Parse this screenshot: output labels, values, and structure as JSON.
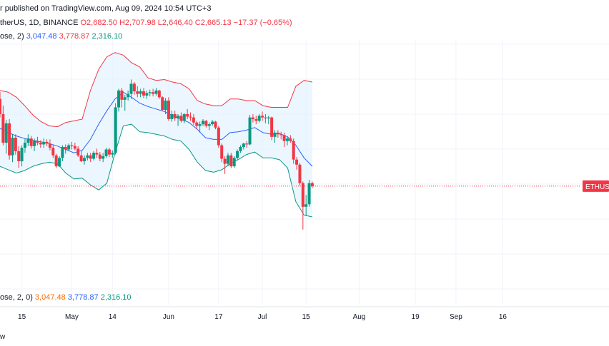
{
  "header": {
    "line1": "r published on TradingView.com, Aug 09, 2024 10:54 UTC+3",
    "symbol": "therUS, 1D, BINANCE",
    "open_label": "O",
    "open": "2,682.50",
    "high_label": "H",
    "high": "2,707.98",
    "low_label": "L",
    "low": "2,646.40",
    "close_label": "C",
    "close": "2,665.13",
    "change": "−17.37 (−0.65%)",
    "bb_label": "ose, 2)",
    "bb_basis": "3,047.48",
    "bb_upper": "3,778.87",
    "bb_lower": "2,316.10"
  },
  "lower_legend": {
    "label": "ose, 2, 0)",
    "v1": "3,047.48",
    "v2": "3,778.87",
    "v3": "2,316.10"
  },
  "price_tag": {
    "label": "ETHUSD"
  },
  "footer": {
    "text": "w"
  },
  "colors": {
    "up": "#089981",
    "down": "#f23645",
    "basis": "#2962ff",
    "upper": "#f23645",
    "lower": "#089981",
    "band_fill": "#e3f2fd",
    "grid": "#f0f3fa",
    "price_line": "#f23645"
  },
  "chart_data": {
    "type": "candlestick",
    "y_range": [
      1250,
      4400
    ],
    "x_start": "2024-04-08",
    "x_end": "2024-10-20",
    "x_ticks": [
      {
        "date": "2024-04-15",
        "label": "15"
      },
      {
        "date": "2024-05-01",
        "label": "May"
      },
      {
        "date": "2024-05-14",
        "label": "14"
      },
      {
        "date": "2024-06-01",
        "label": "Jun"
      },
      {
        "date": "2024-06-17",
        "label": "17"
      },
      {
        "date": "2024-07-01",
        "label": "Jul"
      },
      {
        "date": "2024-07-15",
        "label": "15"
      },
      {
        "date": "2024-08-01",
        "label": "Aug"
      },
      {
        "date": "2024-08-19",
        "label": "19"
      },
      {
        "date": "2024-09-01",
        "label": "Sep"
      },
      {
        "date": "2024-09-16",
        "label": "16"
      }
    ],
    "last_price": 2665.13,
    "candles_start": "2024-04-08",
    "candles": [
      [
        3700,
        3780,
        3480,
        3520
      ],
      [
        3520,
        3620,
        3150,
        3180
      ],
      [
        3180,
        3450,
        3050,
        3410
      ],
      [
        3410,
        3460,
        2980,
        3030
      ],
      [
        3030,
        3280,
        2950,
        3240
      ],
      [
        3240,
        3280,
        3040,
        3080
      ],
      [
        3080,
        3140,
        2880,
        2960
      ],
      [
        2960,
        3150,
        2900,
        3120
      ],
      [
        3120,
        3230,
        3060,
        3180
      ],
      [
        3180,
        3280,
        3140,
        3230
      ],
      [
        3230,
        3260,
        3110,
        3140
      ],
      [
        3140,
        3230,
        3080,
        3200
      ],
      [
        3200,
        3250,
        3150,
        3180
      ],
      [
        3180,
        3210,
        3120,
        3160
      ],
      [
        3160,
        3230,
        3120,
        3190
      ],
      [
        3190,
        3220,
        3140,
        3170
      ],
      [
        3170,
        3220,
        3090,
        3120
      ],
      [
        3120,
        3160,
        3000,
        3030
      ],
      [
        3030,
        3050,
        2880,
        2900
      ],
      [
        2900,
        3020,
        2890,
        3000
      ],
      [
        3000,
        3150,
        2960,
        3130
      ],
      [
        3130,
        3160,
        3050,
        3100
      ],
      [
        3100,
        3170,
        3080,
        3150
      ],
      [
        3150,
        3190,
        3100,
        3140
      ],
      [
        3140,
        3180,
        3090,
        3110
      ],
      [
        3110,
        3140,
        3010,
        3030
      ],
      [
        3030,
        3090,
        2950,
        2960
      ],
      [
        2960,
        3030,
        2920,
        3000
      ],
      [
        3000,
        3060,
        2970,
        3030
      ],
      [
        3030,
        3060,
        2950,
        2990
      ],
      [
        2990,
        3080,
        2970,
        3060
      ],
      [
        3060,
        3110,
        3000,
        3040
      ],
      [
        3040,
        3070,
        2960,
        2990
      ],
      [
        2990,
        3060,
        2950,
        3020
      ],
      [
        3020,
        3120,
        3000,
        3100
      ],
      [
        3100,
        3120,
        3010,
        3040
      ],
      [
        3040,
        3090,
        3000,
        3060
      ],
      [
        3060,
        3650,
        3040,
        3600
      ],
      [
        3600,
        3820,
        3550,
        3800
      ],
      [
        3800,
        3830,
        3600,
        3690
      ],
      [
        3690,
        3750,
        3560,
        3720
      ],
      [
        3720,
        3800,
        3680,
        3760
      ],
      [
        3760,
        3930,
        3700,
        3880
      ],
      [
        3880,
        3900,
        3750,
        3790
      ],
      [
        3790,
        3850,
        3720,
        3760
      ],
      [
        3760,
        3820,
        3720,
        3790
      ],
      [
        3790,
        3830,
        3710,
        3740
      ],
      [
        3740,
        3800,
        3700,
        3770
      ],
      [
        3770,
        3810,
        3730,
        3780
      ],
      [
        3780,
        3820,
        3730,
        3760
      ],
      [
        3760,
        3830,
        3740,
        3800
      ],
      [
        3800,
        3810,
        3700,
        3720
      ],
      [
        3720,
        3730,
        3560,
        3570
      ],
      [
        3570,
        3710,
        3520,
        3680
      ],
      [
        3680,
        3720,
        3440,
        3460
      ],
      [
        3460,
        3560,
        3430,
        3520
      ],
      [
        3520,
        3560,
        3440,
        3470
      ],
      [
        3470,
        3520,
        3380,
        3500
      ],
      [
        3500,
        3540,
        3420,
        3440
      ],
      [
        3440,
        3530,
        3410,
        3520
      ],
      [
        3520,
        3580,
        3460,
        3490
      ],
      [
        3490,
        3540,
        3440,
        3480
      ],
      [
        3480,
        3520,
        3390,
        3420
      ],
      [
        3420,
        3440,
        3340,
        3380
      ],
      [
        3380,
        3430,
        3300,
        3400
      ],
      [
        3400,
        3460,
        3380,
        3440
      ],
      [
        3440,
        3450,
        3360,
        3380
      ],
      [
        3380,
        3420,
        3330,
        3400
      ],
      [
        3400,
        3450,
        3380,
        3430
      ],
      [
        3430,
        3440,
        3340,
        3360
      ],
      [
        3360,
        3380,
        3120,
        3150
      ],
      [
        3150,
        3170,
        2950,
        2990
      ],
      [
        2990,
        3020,
        2810,
        2930
      ],
      [
        2930,
        3060,
        2900,
        3030
      ],
      [
        3030,
        3060,
        2880,
        2900
      ],
      [
        2900,
        3020,
        2880,
        3000
      ],
      [
        3000,
        3100,
        2980,
        3080
      ],
      [
        3080,
        3150,
        3060,
        3130
      ],
      [
        3130,
        3180,
        3100,
        3170
      ],
      [
        3170,
        3200,
        3120,
        3160
      ],
      [
        3160,
        3510,
        3150,
        3480
      ],
      [
        3480,
        3520,
        3420,
        3460
      ],
      [
        3460,
        3500,
        3400,
        3440
      ],
      [
        3440,
        3520,
        3420,
        3500
      ],
      [
        3500,
        3550,
        3440,
        3480
      ],
      [
        3480,
        3520,
        3410,
        3470
      ],
      [
        3470,
        3500,
        3400,
        3480
      ],
      [
        3480,
        3490,
        3210,
        3250
      ],
      [
        3250,
        3330,
        3180,
        3300
      ],
      [
        3300,
        3330,
        3240,
        3280
      ],
      [
        3280,
        3310,
        3220,
        3270
      ],
      [
        3270,
        3300,
        3130,
        3200
      ],
      [
        3200,
        3250,
        3150,
        3230
      ],
      [
        3230,
        3270,
        3180,
        3200
      ],
      [
        3200,
        3230,
        2930,
        2980
      ],
      [
        2980,
        3010,
        2860,
        2920
      ],
      [
        2920,
        2940,
        2670,
        2700
      ],
      [
        2700,
        2720,
        2150,
        2420
      ],
      [
        2420,
        2560,
        2310,
        2450
      ],
      [
        2450,
        2740,
        2420,
        2700
      ],
      [
        2700,
        2720,
        2640,
        2665
      ]
    ],
    "bollinger": {
      "upper": [
        3800,
        3780,
        3720,
        3620,
        3510,
        3430,
        3380,
        3370,
        3420,
        3440,
        3460,
        3800,
        4050,
        4200,
        4250,
        4220,
        4130,
        4080,
        3950,
        3920,
        3930,
        3900,
        3880,
        3820,
        3680,
        3640,
        3620,
        3620,
        3700,
        3700,
        3680,
        3680,
        3620,
        3600,
        3600,
        3600,
        3850,
        3920,
        3900
      ],
      "basis": [
        3350,
        3300,
        3260,
        3230,
        3210,
        3190,
        3170,
        3140,
        3100,
        3060,
        3090,
        3220,
        3400,
        3560,
        3700,
        3780,
        3720,
        3650,
        3610,
        3580,
        3550,
        3500,
        3460,
        3420,
        3340,
        3240,
        3220,
        3220,
        3300,
        3310,
        3330,
        3360,
        3300,
        3280,
        3290,
        3250,
        3150,
        3000,
        2900
      ],
      "lower": [
        2900,
        2860,
        2820,
        2850,
        2900,
        2930,
        2950,
        2930,
        2820,
        2750,
        2760,
        2680,
        2620,
        2700,
        3060,
        3380,
        3400,
        3310,
        3300,
        3280,
        3260,
        3220,
        3200,
        3100,
        2950,
        2850,
        2830,
        2860,
        2930,
        2980,
        3040,
        3070,
        3000,
        3000,
        2980,
        2880,
        2480,
        2320,
        2300
      ]
    }
  }
}
